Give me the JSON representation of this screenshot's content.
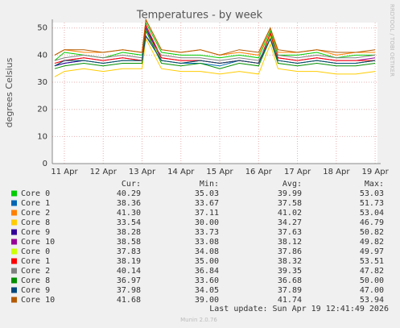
{
  "chart_data": {
    "type": "line",
    "title": "Temperatures - by week",
    "y_label": "degrees Celsius",
    "side_text": "RRDTOOL / TOBI OETIKER",
    "x": [
      10.75,
      11,
      11.5,
      12,
      12.5,
      13,
      13.1,
      13.5,
      14,
      14.5,
      15,
      15.5,
      16,
      16.3,
      16.5,
      17,
      17.5,
      18,
      18.5,
      19
    ],
    "xlim": [
      10.69,
      19.06
    ],
    "xticks": [
      {
        "value": 11,
        "label": "11 Apr"
      },
      {
        "value": 12,
        "label": "12 Apr"
      },
      {
        "value": 13,
        "label": "13 Apr"
      },
      {
        "value": 14,
        "label": "14 Apr"
      },
      {
        "value": 15,
        "label": "15 Apr"
      },
      {
        "value": 16,
        "label": "16 Apr"
      },
      {
        "value": 17,
        "label": "17 Apr"
      },
      {
        "value": 18,
        "label": "18 Apr"
      },
      {
        "value": 19,
        "label": "19 Apr"
      }
    ],
    "ylim": [
      0,
      52
    ],
    "yticks": [
      0,
      10,
      20,
      30,
      40,
      50
    ],
    "grid": true,
    "columns": [
      "Cur:",
      "Min:",
      "Avg:",
      "Max:"
    ],
    "series": [
      {
        "name": "Core 0",
        "color": "#00cc00",
        "stats": [
          "40.29",
          "35.03",
          "39.99",
          "53.03"
        ],
        "values": [
          38,
          41,
          40,
          39,
          41,
          40,
          52,
          41,
          40,
          40,
          39,
          40,
          39,
          49,
          40,
          40,
          41,
          39,
          40,
          40
        ]
      },
      {
        "name": "Core 1",
        "color": "#0066b3",
        "stats": [
          "38.36",
          "33.67",
          "37.58",
          "51.73"
        ],
        "values": [
          36,
          37,
          38,
          37,
          38,
          38,
          51,
          38,
          37,
          37,
          36,
          38,
          37,
          47,
          38,
          37,
          38,
          37,
          37,
          38
        ]
      },
      {
        "name": "Core 2",
        "color": "#ff8000",
        "stats": [
          "41.30",
          "37.11",
          "41.02",
          "53.04"
        ],
        "values": [
          40,
          42,
          41,
          41,
          42,
          41,
          53,
          42,
          41,
          42,
          40,
          41,
          40,
          50,
          41,
          41,
          42,
          40,
          41,
          41
        ]
      },
      {
        "name": "Core 8",
        "color": "#ffcc00",
        "stats": [
          "33.54",
          "30.00",
          "34.27",
          "46.79"
        ],
        "values": [
          32,
          34,
          35,
          34,
          35,
          35,
          46,
          35,
          34,
          34,
          33,
          34,
          33,
          44,
          35,
          34,
          34,
          33,
          33,
          34
        ]
      },
      {
        "name": "Core 9",
        "color": "#330099",
        "stats": [
          "38.28",
          "33.73",
          "37.63",
          "50.82"
        ],
        "values": [
          36,
          37,
          38,
          37,
          38,
          38,
          50,
          38,
          37,
          38,
          37,
          38,
          37,
          48,
          38,
          37,
          38,
          37,
          37,
          38
        ]
      },
      {
        "name": "Core 10",
        "color": "#990099",
        "stats": [
          "38.58",
          "33.08",
          "38.12",
          "49.82"
        ],
        "values": [
          36,
          38,
          39,
          38,
          39,
          38,
          49,
          39,
          38,
          38,
          37,
          38,
          37,
          47,
          39,
          38,
          39,
          38,
          38,
          39
        ]
      },
      {
        "name": "Core 0",
        "color": "#ccff00",
        "stats": [
          "37.83",
          "34.08",
          "37.86",
          "49.97"
        ],
        "values": [
          36,
          38,
          38,
          37,
          38,
          38,
          49,
          38,
          37,
          38,
          37,
          38,
          37,
          47,
          38,
          37,
          38,
          37,
          37,
          38
        ]
      },
      {
        "name": "Core 1",
        "color": "#ff0000",
        "stats": [
          "38.19",
          "35.00",
          "38.32",
          "53.51"
        ],
        "values": [
          37,
          38,
          39,
          38,
          39,
          38,
          51,
          39,
          38,
          38,
          37,
          38,
          37,
          48,
          39,
          38,
          39,
          38,
          38,
          38
        ]
      },
      {
        "name": "Core 2",
        "color": "#808080",
        "stats": [
          "40.14",
          "36.84",
          "39.35",
          "47.82"
        ],
        "values": [
          38,
          39,
          40,
          39,
          40,
          39,
          47,
          40,
          39,
          39,
          38,
          39,
          38,
          46,
          40,
          39,
          40,
          39,
          39,
          40
        ]
      },
      {
        "name": "Core 8",
        "color": "#008f00",
        "stats": [
          "36.97",
          "33.60",
          "36.68",
          "50.00"
        ],
        "values": [
          35,
          36,
          37,
          36,
          37,
          37,
          49,
          37,
          36,
          37,
          35,
          37,
          36,
          46,
          37,
          36,
          37,
          36,
          36,
          37
        ]
      },
      {
        "name": "Core 9",
        "color": "#00487d",
        "stats": [
          "37.98",
          "34.05",
          "37.89",
          "47.00"
        ],
        "values": [
          36,
          38,
          38,
          37,
          38,
          38,
          47,
          38,
          37,
          38,
          37,
          38,
          37,
          46,
          38,
          37,
          38,
          37,
          37,
          38
        ]
      },
      {
        "name": "Core 10",
        "color": "#b35a00",
        "stats": [
          "41.68",
          "39.00",
          "41.74",
          "53.94"
        ],
        "values": [
          40,
          42,
          42,
          41,
          42,
          41,
          53,
          42,
          41,
          42,
          40,
          42,
          41,
          50,
          42,
          41,
          42,
          41,
          41,
          42
        ]
      }
    ],
    "last_update": "Last update: Sun Apr 19 12:41:49 2026",
    "footer": "Munin 2.0.76"
  }
}
